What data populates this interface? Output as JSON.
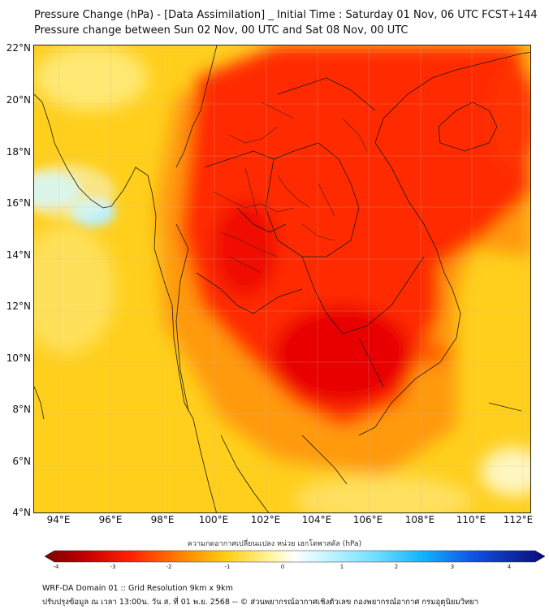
{
  "title_line1": "Pressure Change (hPa) - [Data Assimilation] _ Initial Time : Saturday 01 Nov, 06 UTC FCST+144",
  "title_line2": "Pressure change between Sun 02 Nov, 00 UTC and Sat 08 Nov, 00 UTC",
  "lat_labels": [
    "22°N",
    "20°N",
    "18°N",
    "16°N",
    "14°N",
    "12°N",
    "10°N",
    "8°N",
    "6°N",
    "4°N"
  ],
  "lon_labels": [
    "94°E",
    "96°E",
    "98°E",
    "100°E",
    "102°E",
    "104°E",
    "106°E",
    "108°E",
    "110°E",
    "112°E"
  ],
  "colorbar": {
    "title": "ความกดอากาศเปลี่ยนแปลง หน่วย เฮกโตพาสคัล (hPa)",
    "ticks": [
      "-4",
      "-3",
      "-2",
      "-1",
      "0",
      "1",
      "2",
      "3",
      "4"
    ],
    "min": -4,
    "max": 4
  },
  "footer_line1": "WRF-DA Domain 01 :: Grid Resolution 9km x 9km",
  "footer_line2": "ปรับปรุงข้อมูล ณ เวลา 13:00น. วัน ส. ที่ 01 พ.ย. 2568 -- © ส่วนพยากรณ์อากาศเชิงตัวเลข กองพยากรณ์อากาศ กรมอุตุนิยมวิทยา",
  "colors": {
    "deep_red": "#e00000",
    "red": "#ff2a00",
    "orange": "#ff8c00",
    "yellow": "#ffd21a",
    "pale_yellow": "#fff29a",
    "light_blue": "#a6ecff",
    "dark_red": "#7a0000",
    "dark_blue": "#0a0a78"
  }
}
